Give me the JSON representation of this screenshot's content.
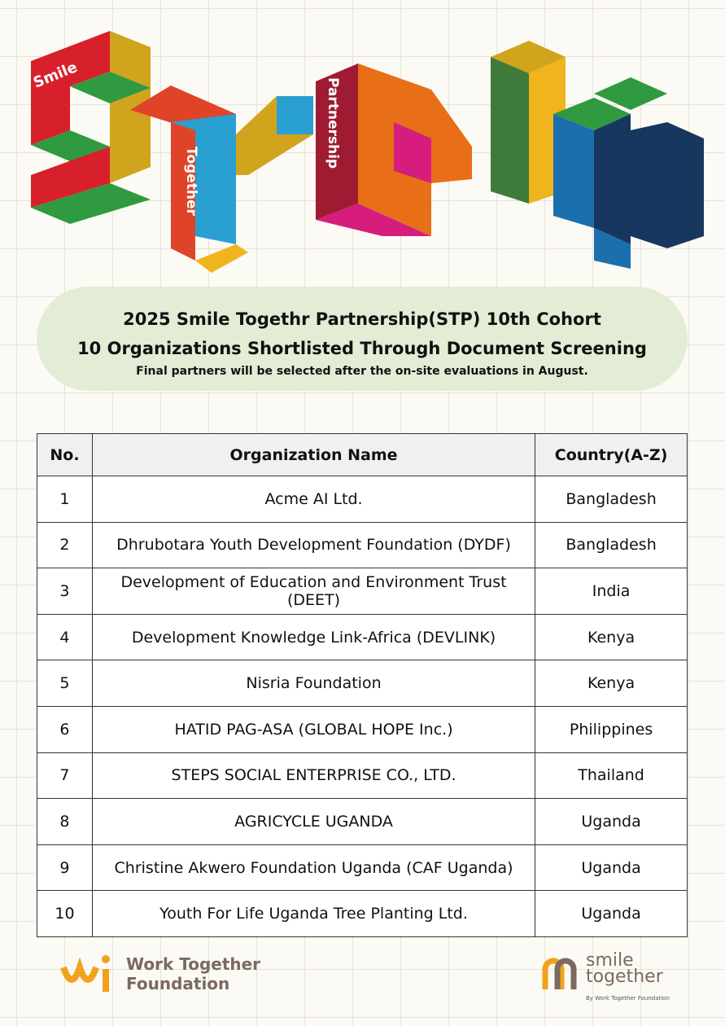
{
  "hero": {
    "words": [
      "Smile",
      "Together",
      "Partnership"
    ]
  },
  "banner": {
    "title_lines": [
      "2025 Smile Togethr Partnership(STP) 10th Cohort",
      "10 Organizations Shortlisted Through Document Screening"
    ],
    "subtitle": "Final partners will be selected after the on-site evaluations in August."
  },
  "table": {
    "headers": [
      "No.",
      "Organization Name",
      "Country(A-Z)"
    ],
    "rows": [
      [
        1,
        "Acme AI Ltd.",
        "Bangladesh"
      ],
      [
        2,
        "Dhrubotara Youth Development Foundation (DYDF)",
        "Bangladesh"
      ],
      [
        3,
        "Development of Education and Environment Trust (DEET)",
        "India"
      ],
      [
        4,
        "Development Knowledge Link-Africa (DEVLINK)",
        "Kenya"
      ],
      [
        5,
        "Nisria Foundation",
        "Kenya"
      ],
      [
        6,
        "HATID PAG-ASA (GLOBAL HOPE Inc.)",
        "Philippines"
      ],
      [
        7,
        "STEPS SOCIAL ENTERPRISE CO., LTD.",
        "Thailand"
      ],
      [
        8,
        "AGRICYCLE UGANDA",
        "Uganda"
      ],
      [
        9,
        "Christine Akwero Foundation Uganda (CAF Uganda)",
        "Uganda"
      ],
      [
        10,
        "Youth For Life Uganda Tree Planting Ltd.",
        "Uganda"
      ]
    ]
  },
  "footer": {
    "left_logo": [
      "Work Together",
      "Foundation"
    ],
    "right_logo": {
      "name": [
        "smile",
        "together"
      ],
      "tagline": "By Work Together Foundation"
    }
  }
}
